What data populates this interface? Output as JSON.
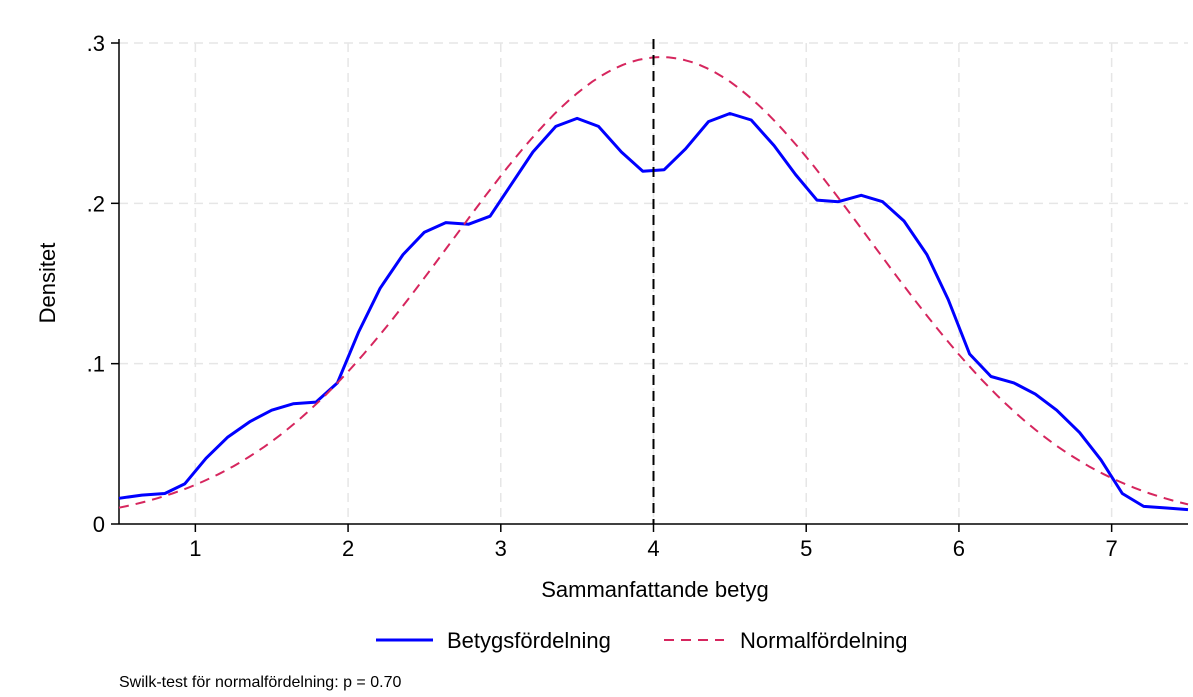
{
  "chart_data": {
    "type": "line",
    "xlabel": "Sammanfattande betyg",
    "ylabel": "Densitet",
    "xlim": [
      0.5,
      7.5
    ],
    "ylim": [
      0,
      0.3
    ],
    "x_ticks": [
      1,
      2,
      3,
      4,
      5,
      6,
      7
    ],
    "x_tick_labels": [
      "1",
      "2",
      "3",
      "4",
      "5",
      "6",
      "7"
    ],
    "y_ticks": [
      0,
      0.1,
      0.2,
      0.3
    ],
    "y_tick_labels": [
      "0",
      ".1",
      ".2",
      ".3"
    ],
    "grid": true,
    "reference_line": {
      "x": 4,
      "style": "dashed",
      "color": "#000000"
    },
    "legend_position": "bottom",
    "series": [
      {
        "name": "Betygsfördelning",
        "color": "#0000ff",
        "style": "solid",
        "points": [
          [
            0.5,
            0.016
          ],
          [
            0.65,
            0.018
          ],
          [
            0.8,
            0.019
          ],
          [
            0.93,
            0.025
          ],
          [
            1.07,
            0.041
          ],
          [
            1.21,
            0.054
          ],
          [
            1.36,
            0.064
          ],
          [
            1.5,
            0.071
          ],
          [
            1.64,
            0.075
          ],
          [
            1.79,
            0.076
          ],
          [
            1.93,
            0.088
          ],
          [
            2.07,
            0.12
          ],
          [
            2.21,
            0.147
          ],
          [
            2.36,
            0.168
          ],
          [
            2.5,
            0.182
          ],
          [
            2.64,
            0.188
          ],
          [
            2.79,
            0.187
          ],
          [
            2.93,
            0.192
          ],
          [
            3.07,
            0.212
          ],
          [
            3.21,
            0.232
          ],
          [
            3.36,
            0.248
          ],
          [
            3.5,
            0.253
          ],
          [
            3.64,
            0.248
          ],
          [
            3.79,
            0.232
          ],
          [
            3.93,
            0.22
          ],
          [
            4.07,
            0.221
          ],
          [
            4.21,
            0.234
          ],
          [
            4.36,
            0.251
          ],
          [
            4.5,
            0.256
          ],
          [
            4.64,
            0.252
          ],
          [
            4.79,
            0.236
          ],
          [
            4.93,
            0.218
          ],
          [
            5.07,
            0.202
          ],
          [
            5.21,
            0.201
          ],
          [
            5.36,
            0.205
          ],
          [
            5.5,
            0.201
          ],
          [
            5.64,
            0.189
          ],
          [
            5.79,
            0.168
          ],
          [
            5.93,
            0.14
          ],
          [
            6.07,
            0.106
          ],
          [
            6.21,
            0.092
          ],
          [
            6.36,
            0.088
          ],
          [
            6.5,
            0.081
          ],
          [
            6.64,
            0.071
          ],
          [
            6.79,
            0.057
          ],
          [
            6.93,
            0.04
          ],
          [
            7.07,
            0.019
          ],
          [
            7.21,
            0.011
          ],
          [
            7.36,
            0.01
          ],
          [
            7.5,
            0.009
          ]
        ]
      },
      {
        "name": "Normalfördelning",
        "color": "#d6265e",
        "style": "dashed",
        "distribution": {
          "mean": 4.05,
          "sd": 1.37
        }
      }
    ]
  },
  "note": "Swilk-test för normalfördelning: p = 0.70"
}
